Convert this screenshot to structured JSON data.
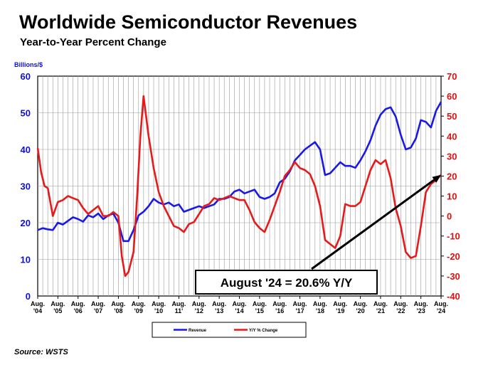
{
  "chart_data": {
    "type": "line",
    "title": "Worldwide Semiconductor Revenues",
    "subtitle": "Year-to-Year Percent Change",
    "ylabel_left": "Billions/$",
    "ylim_left": [
      0,
      60
    ],
    "yticks_left": [
      "0",
      "10",
      "20",
      "30",
      "40",
      "50",
      "60"
    ],
    "ylim_right": [
      -40,
      70
    ],
    "yticks_right": [
      "-40",
      "-30",
      "-20",
      "-10",
      "0",
      "10",
      "20",
      "30",
      "40",
      "50",
      "60",
      "70"
    ],
    "xlim": [
      2004.58,
      2024.58
    ],
    "x_tick_labels": [
      [
        "Aug.",
        "'04"
      ],
      [
        "Aug.",
        "'05"
      ],
      [
        "Aug.",
        "'06"
      ],
      [
        "Aug.",
        "'07"
      ],
      [
        "Aug.",
        "'08"
      ],
      [
        "Aug.",
        "'09"
      ],
      [
        "Aug.",
        "'10"
      ],
      [
        "Aug.",
        "11'"
      ],
      [
        "Aug.",
        "'12"
      ],
      [
        "Aug.",
        "'13"
      ],
      [
        "Aug.",
        "'14"
      ],
      [
        "Aug.",
        "'15"
      ],
      [
        "Aug.",
        "'16"
      ],
      [
        "Aug.",
        "'17"
      ],
      [
        "Aug.",
        "'18"
      ],
      [
        "Aug.",
        "'19"
      ],
      [
        "Aug.",
        "'20"
      ],
      [
        "Aug.",
        "'21"
      ],
      [
        "Aug.",
        "'22"
      ],
      [
        "Aug.",
        "'23"
      ],
      [
        "Aug.",
        "'24"
      ]
    ],
    "grid": true,
    "legend_placement": "bottom-center",
    "series": [
      {
        "name": "Revenue",
        "axis": "left",
        "color": "#1a1ae6",
        "x": [
          2004.58,
          2004.83,
          2005.08,
          2005.33,
          2005.58,
          2005.83,
          2006.08,
          2006.33,
          2006.58,
          2006.83,
          2007.08,
          2007.33,
          2007.58,
          2007.83,
          2008.08,
          2008.33,
          2008.58,
          2008.83,
          2009.08,
          2009.33,
          2009.58,
          2009.83,
          2010.08,
          2010.33,
          2010.58,
          2010.83,
          2011.08,
          2011.33,
          2011.58,
          2011.83,
          2012.08,
          2012.33,
          2012.58,
          2012.83,
          2013.08,
          2013.33,
          2013.58,
          2013.83,
          2014.08,
          2014.33,
          2014.58,
          2014.83,
          2015.08,
          2015.33,
          2015.58,
          2015.83,
          2016.08,
          2016.33,
          2016.58,
          2016.83,
          2017.08,
          2017.33,
          2017.58,
          2017.83,
          2018.08,
          2018.33,
          2018.58,
          2018.83,
          2019.08,
          2019.33,
          2019.58,
          2019.83,
          2020.08,
          2020.33,
          2020.58,
          2020.83,
          2021.08,
          2021.33,
          2021.58,
          2021.83,
          2022.08,
          2022.33,
          2022.58,
          2022.83,
          2023.08,
          2023.33,
          2023.58,
          2023.83,
          2024.08,
          2024.33,
          2024.58
        ],
        "values": [
          18.0,
          18.5,
          18.2,
          18.0,
          20.0,
          19.5,
          20.5,
          21.5,
          21.0,
          20.3,
          22.0,
          21.5,
          22.5,
          21.0,
          22.0,
          22.5,
          20.0,
          15.0,
          15.0,
          18.0,
          22.0,
          23.0,
          24.5,
          26.5,
          25.5,
          25.0,
          25.5,
          24.5,
          25.0,
          23.0,
          23.5,
          24.0,
          24.5,
          24.0,
          24.5,
          25.0,
          26.5,
          26.5,
          27.0,
          28.5,
          29.0,
          28.0,
          28.5,
          29.0,
          27.0,
          26.5,
          27.0,
          28.0,
          31.0,
          32.0,
          34.0,
          37.0,
          38.5,
          40.0,
          41.0,
          42.0,
          40.0,
          33.0,
          33.5,
          35.0,
          36.5,
          35.5,
          35.5,
          35.0,
          37.0,
          39.5,
          42.5,
          46.5,
          49.5,
          51.0,
          51.5,
          49.0,
          44.0,
          40.0,
          40.5,
          43.0,
          48.0,
          47.5,
          46.0,
          50.5,
          53.0
        ]
      },
      {
        "name": "Y/Y % Change",
        "axis": "right",
        "color": "#e61a1a",
        "x": [
          2004.58,
          2004.75,
          2004.92,
          2005.08,
          2005.33,
          2005.58,
          2005.83,
          2006.08,
          2006.33,
          2006.58,
          2006.83,
          2007.08,
          2007.33,
          2007.58,
          2007.83,
          2008.08,
          2008.33,
          2008.58,
          2008.75,
          2008.92,
          2009.08,
          2009.33,
          2009.5,
          2009.67,
          2009.83,
          2010.08,
          2010.33,
          2010.58,
          2010.83,
          2011.08,
          2011.33,
          2011.58,
          2011.83,
          2012.08,
          2012.33,
          2012.58,
          2012.83,
          2013.08,
          2013.33,
          2013.58,
          2013.83,
          2014.08,
          2014.33,
          2014.58,
          2014.83,
          2015.08,
          2015.33,
          2015.58,
          2015.83,
          2016.08,
          2016.33,
          2016.58,
          2016.83,
          2017.08,
          2017.33,
          2017.58,
          2017.83,
          2018.08,
          2018.33,
          2018.58,
          2018.83,
          2019.08,
          2019.33,
          2019.58,
          2019.83,
          2020.08,
          2020.33,
          2020.58,
          2020.83,
          2021.08,
          2021.33,
          2021.58,
          2021.83,
          2022.08,
          2022.33,
          2022.58,
          2022.83,
          2023.08,
          2023.33,
          2023.58,
          2023.83,
          2024.08,
          2024.33,
          2024.58
        ],
        "values": [
          34.0,
          22.0,
          15.0,
          14.0,
          0.0,
          7.0,
          8.0,
          10.0,
          9.0,
          8.0,
          4.0,
          1.0,
          3.0,
          5.0,
          0.0,
          0.0,
          2.0,
          0.0,
          -20.0,
          -30.0,
          -28.0,
          -18.0,
          8.0,
          40.0,
          60.0,
          40.0,
          24.0,
          12.0,
          5.0,
          0.0,
          -5.0,
          -6.0,
          -8.0,
          -4.0,
          -3.0,
          1.0,
          5.0,
          6.0,
          9.0,
          8.0,
          9.0,
          10.0,
          9.0,
          8.0,
          8.0,
          3.0,
          -3.0,
          -6.0,
          -8.0,
          -2.0,
          5.0,
          12.0,
          20.0,
          23.0,
          27.0,
          24.0,
          23.0,
          21.0,
          15.0,
          5.0,
          -12.0,
          -14.0,
          -16.0,
          -10.0,
          6.0,
          5.0,
          5.0,
          7.0,
          15.0,
          23.0,
          28.0,
          26.0,
          28.0,
          19.0,
          4.0,
          -5.0,
          -18.0,
          -21.0,
          -20.0,
          -5.0,
          12.0,
          16.0,
          18.0,
          20.6
        ]
      }
    ],
    "annotation": {
      "text": "August '24 = 20.6% Y/Y",
      "points_to_x": 2024.58,
      "points_to_y_right": 20.6
    }
  },
  "source": "Source: WSTS"
}
